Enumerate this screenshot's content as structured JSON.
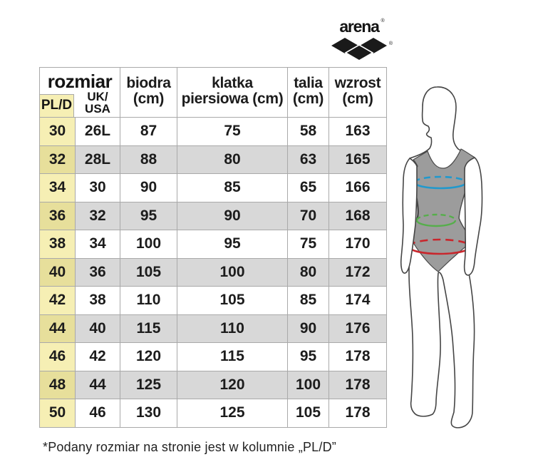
{
  "brand": {
    "wordmark": "arena",
    "registered_mark": "®"
  },
  "size_chart": {
    "header": {
      "rozmiar": "rozmiar",
      "pl_d": "PL/D",
      "uk_usa": [
        "UK/",
        "USA"
      ],
      "biodra": [
        "biodra",
        "(cm)"
      ],
      "klatka_piersiowa": [
        "klatka",
        "piersiowa (cm)"
      ],
      "talia": [
        "talia",
        "(cm)"
      ],
      "wzrost": [
        "wzrost",
        "(cm)"
      ]
    },
    "column_keys": [
      "pl-d",
      "uk-usa",
      "biodra-cm",
      "klatka-piersiowa-cm",
      "talia-cm",
      "wzrost-cm"
    ],
    "rows": [
      [
        "30",
        "26L",
        "87",
        "75",
        "58",
        "163"
      ],
      [
        "32",
        "28L",
        "88",
        "80",
        "63",
        "165"
      ],
      [
        "34",
        "30",
        "90",
        "85",
        "65",
        "166"
      ],
      [
        "36",
        "32",
        "95",
        "90",
        "70",
        "168"
      ],
      [
        "38",
        "34",
        "100",
        "95",
        "75",
        "170"
      ],
      [
        "40",
        "36",
        "105",
        "100",
        "80",
        "172"
      ],
      [
        "42",
        "38",
        "110",
        "105",
        "85",
        "174"
      ],
      [
        "44",
        "40",
        "115",
        "110",
        "90",
        "176"
      ],
      [
        "46",
        "42",
        "120",
        "115",
        "95",
        "178"
      ],
      [
        "48",
        "44",
        "125",
        "120",
        "100",
        "178"
      ],
      [
        "50",
        "46",
        "130",
        "125",
        "105",
        "178"
      ]
    ]
  },
  "footnote": "*Podany rozmiar na stronie jest w kolumnie „PL/D”",
  "figure": {
    "measurement_lines": [
      {
        "name": "klatka piersiowa",
        "color": "#2199cd"
      },
      {
        "name": "talia",
        "color": "#56ae4b"
      },
      {
        "name": "biodra",
        "color": "#c9262c"
      }
    ]
  },
  "colors": {
    "biodra_header": "#c9262c",
    "klatka_header": "#2199cd",
    "talia_header": "#56ae4b",
    "wzrost_header": "#c01579",
    "row_alt_bg": "#d8d8d8",
    "pld_col_bg": "#f6efb4",
    "pld_col_alt_bg": "#e7df9b",
    "grid_border": "#a9a9a9",
    "swimsuit_fill": "#9c9c9c"
  }
}
